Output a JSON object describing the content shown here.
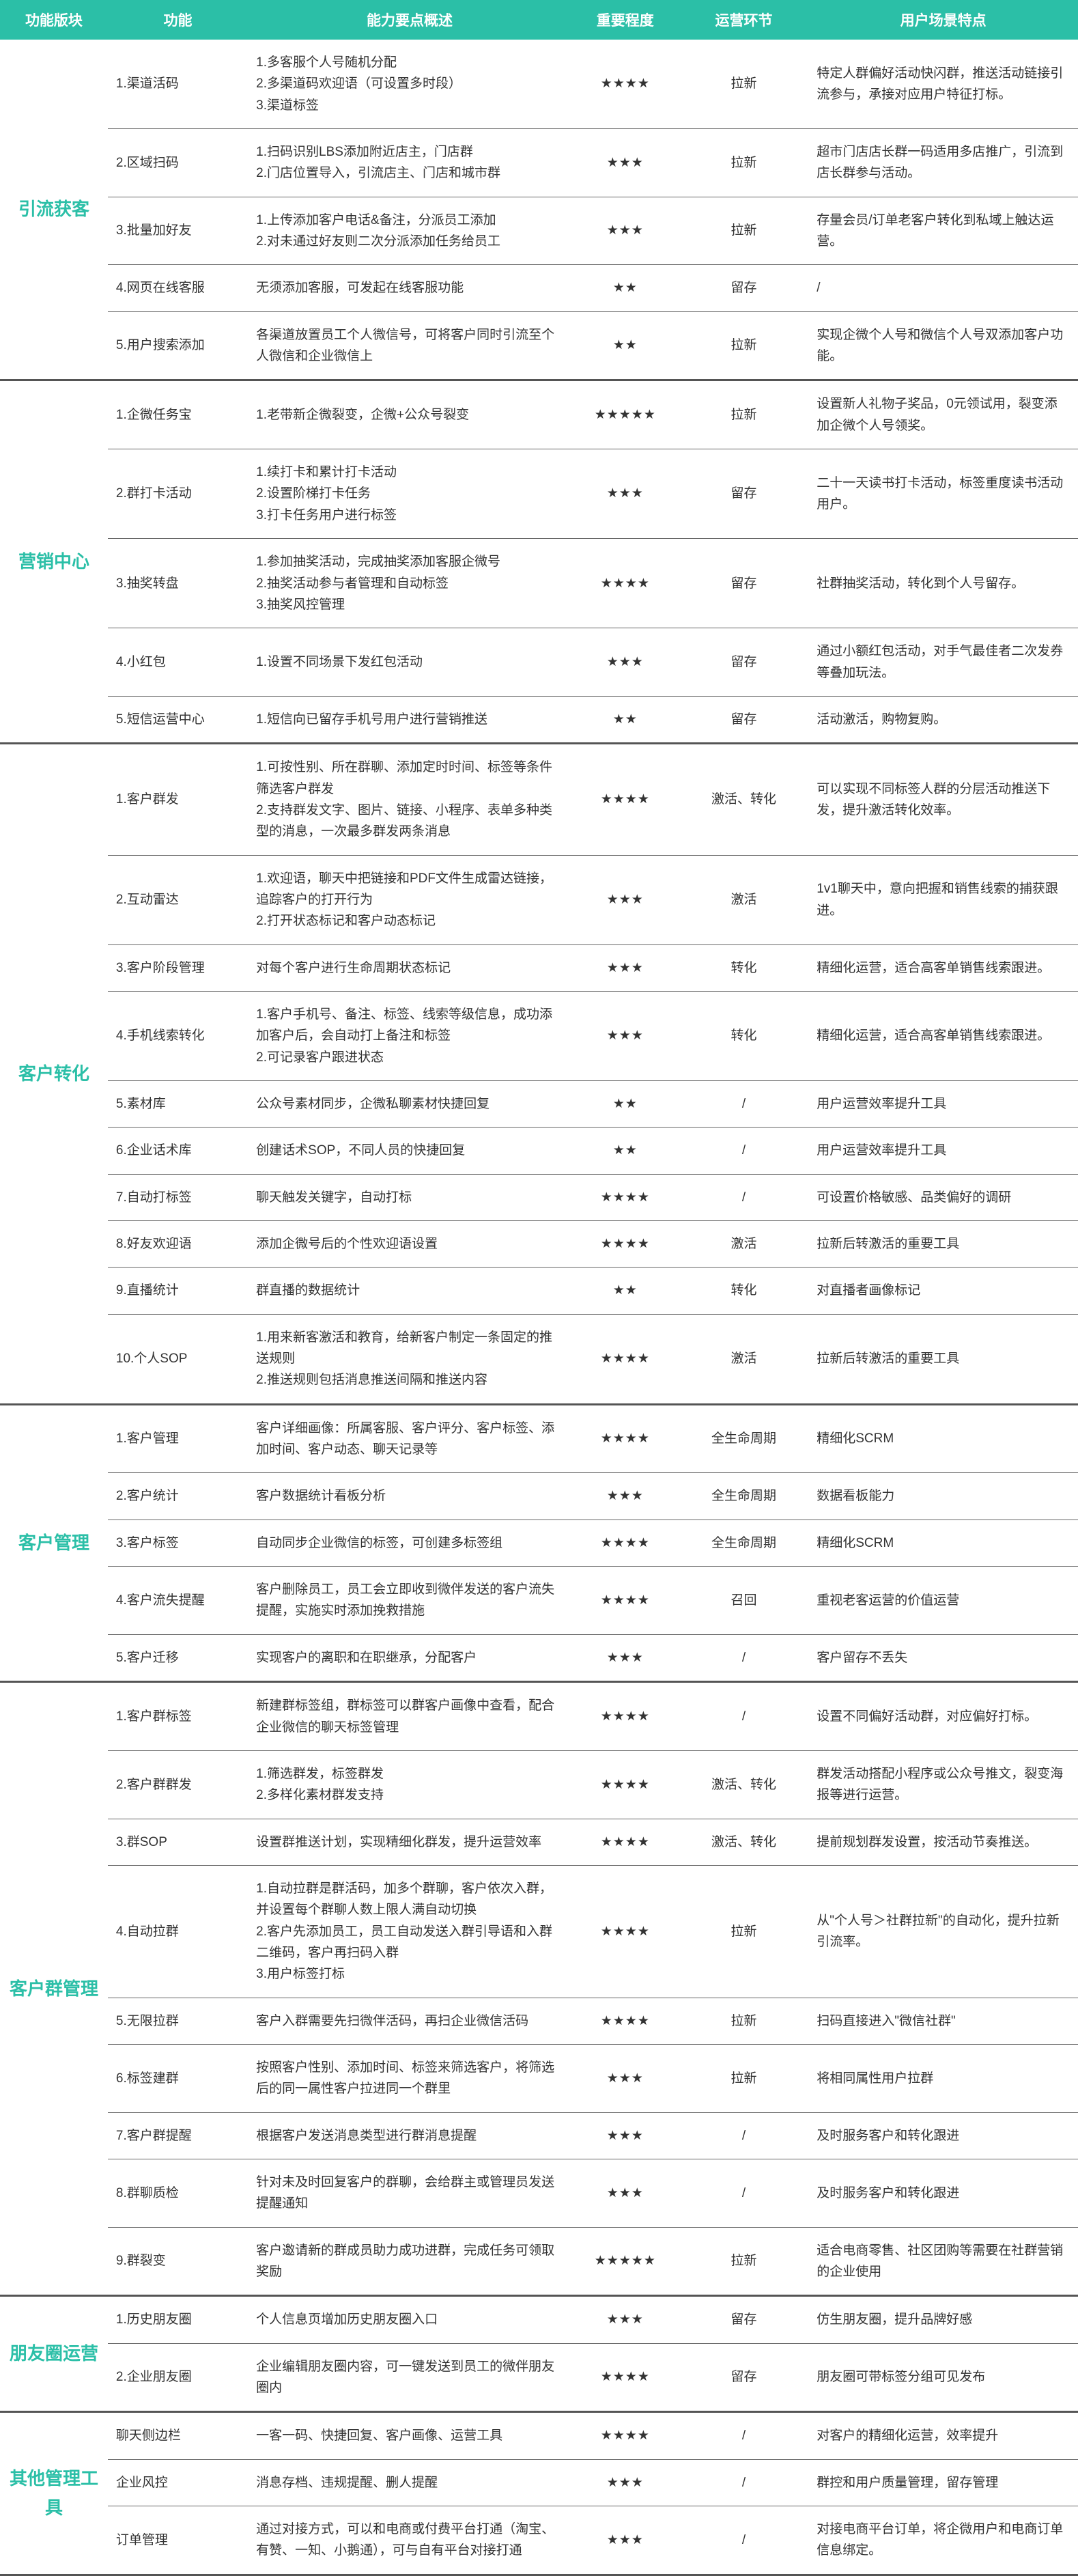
{
  "colors": {
    "header_bg": "#2bbfa7",
    "header_text": "#ffffff",
    "module_text": "#2bbfa7",
    "body_text": "#333333",
    "row_border": "#666666",
    "section_border": "#555555"
  },
  "column_widths_pct": [
    10,
    13,
    30,
    10,
    12,
    25
  ],
  "headers": [
    "功能版块",
    "功能",
    "能力要点概述",
    "重要程度",
    "运营环节",
    "用户场景特点"
  ],
  "modules": [
    {
      "name": "引流获客",
      "rows": [
        {
          "func": "1.渠道活码",
          "desc": "1.多客服个人号随机分配\n2.多渠道码欢迎语（可设置多时段）\n3.渠道标签",
          "stars": "★★★★",
          "phase": "拉新",
          "scene": "特定人群偏好活动快闪群，推送活动链接引流参与，承接对应用户特征打标。"
        },
        {
          "func": "2.区域扫码",
          "desc": "1.扫码识别LBS添加附近店主，门店群\n2.门店位置导入，引流店主、门店和城市群",
          "stars": "★★★",
          "phase": "拉新",
          "scene": "超市门店店长群一码适用多店推广，引流到店长群参与活动。"
        },
        {
          "func": "3.批量加好友",
          "desc": "1.上传添加客户电话&备注，分派员工添加\n2.对未通过好友则二次分派添加任务给员工",
          "stars": "★★★",
          "phase": "拉新",
          "scene": "存量会员/订单老客户转化到私域上触达运营。"
        },
        {
          "func": "4.网页在线客服",
          "desc": "无须添加客服，可发起在线客服功能",
          "stars": "★★",
          "phase": "留存",
          "scene": "/"
        },
        {
          "func": "5.用户搜索添加",
          "desc": "各渠道放置员工个人微信号，可将客户同时引流至个人微信和企业微信上",
          "stars": "★★",
          "phase": "拉新",
          "scene": "实现企微个人号和微信个人号双添加客户功能。"
        }
      ]
    },
    {
      "name": "营销中心",
      "rows": [
        {
          "func": "1.企微任务宝",
          "desc": "1.老带新企微裂变，企微+公众号裂变",
          "stars": "★★★★★",
          "phase": "拉新",
          "scene": "设置新人礼物子奖品，0元领试用，裂变添加企微个人号领奖。"
        },
        {
          "func": "2.群打卡活动",
          "desc": "1.续打卡和累计打卡活动\n2.设置阶梯打卡任务\n3.打卡任务用户进行标签",
          "stars": "★★★",
          "phase": "留存",
          "scene": "二十一天读书打卡活动，标签重度读书活动用户。"
        },
        {
          "func": "3.抽奖转盘",
          "desc": "1.参加抽奖活动，完成抽奖添加客服企微号\n2.抽奖活动参与者管理和自动标签\n3.抽奖风控管理",
          "stars": "★★★★",
          "phase": "留存",
          "scene": "社群抽奖活动，转化到个人号留存。"
        },
        {
          "func": "4.小红包",
          "desc": "1.设置不同场景下发红包活动",
          "stars": "★★★",
          "phase": "留存",
          "scene": "通过小额红包活动，对手气最佳者二次发券等叠加玩法。"
        },
        {
          "func": "5.短信运营中心",
          "desc": "1.短信向已留存手机号用户进行营销推送",
          "stars": "★★",
          "phase": "留存",
          "scene": "活动激活，购物复购。"
        }
      ]
    },
    {
      "name": "客户转化",
      "rows": [
        {
          "func": "1.客户群发",
          "desc": "1.可按性别、所在群聊、添加定时时间、标签等条件筛选客户群发\n2.支持群发文字、图片、链接、小程序、表单多种类型的消息，一次最多群发两条消息",
          "stars": "★★★★",
          "phase": "激活、转化",
          "scene": "可以实现不同标签人群的分层活动推送下发，提升激活转化效率。"
        },
        {
          "func": "2.互动雷达",
          "desc": "1.欢迎语，聊天中把链接和PDF文件生成雷达链接，追踪客户的打开行为\n2.打开状态标记和客户动态标记",
          "stars": "★★★",
          "phase": "激活",
          "scene": "1v1聊天中，意向把握和销售线索的捕获跟进。"
        },
        {
          "func": "3.客户阶段管理",
          "desc": "对每个客户进行生命周期状态标记",
          "stars": "★★★",
          "phase": "转化",
          "scene": "精细化运营，适合高客单销售线索跟进。"
        },
        {
          "func": "4.手机线索转化",
          "desc": "1.客户手机号、备注、标签、线索等级信息，成功添加客户后，会自动打上备注和标签\n2.可记录客户跟进状态",
          "stars": "★★★",
          "phase": "转化",
          "scene": "精细化运营，适合高客单销售线索跟进。"
        },
        {
          "func": "5.素材库",
          "desc": "公众号素材同步，企微私聊素材快捷回复",
          "stars": "★★",
          "phase": "/",
          "scene": "用户运营效率提升工具"
        },
        {
          "func": "6.企业话术库",
          "desc": "创建话术SOP，不同人员的快捷回复",
          "stars": "★★",
          "phase": "/",
          "scene": "用户运营效率提升工具"
        },
        {
          "func": "7.自动打标签",
          "desc": "聊天触发关键字，自动打标",
          "stars": "★★★★",
          "phase": "/",
          "scene": "可设置价格敏感、品类偏好的调研"
        },
        {
          "func": "8.好友欢迎语",
          "desc": "添加企微号后的个性欢迎语设置",
          "stars": "★★★★",
          "phase": "激活",
          "scene": "拉新后转激活的重要工具"
        },
        {
          "func": "9.直播统计",
          "desc": "群直播的数据统计",
          "stars": "★★",
          "phase": "转化",
          "scene": "对直播者画像标记"
        },
        {
          "func": "10.个人SOP",
          "desc": "1.用来新客激活和教育，给新客户制定一条固定的推送规则\n2.推送规则包括消息推送间隔和推送内容",
          "stars": "★★★★",
          "phase": "激活",
          "scene": "拉新后转激活的重要工具"
        }
      ]
    },
    {
      "name": "客户管理",
      "rows": [
        {
          "func": "1.客户管理",
          "desc": "客户详细画像：所属客服、客户评分、客户标签、添加时间、客户动态、聊天记录等",
          "stars": "★★★★",
          "phase": "全生命周期",
          "scene": "精细化SCRM"
        },
        {
          "func": "2.客户统计",
          "desc": "客户数据统计看板分析",
          "stars": "★★★",
          "phase": "全生命周期",
          "scene": "数据看板能力"
        },
        {
          "func": "3.客户标签",
          "desc": "自动同步企业微信的标签，可创建多标签组",
          "stars": "★★★★",
          "phase": "全生命周期",
          "scene": "精细化SCRM"
        },
        {
          "func": "4.客户流失提醒",
          "desc": "客户删除员工，员工会立即收到微伴发送的客户流失提醒，实施实时添加挽救措施",
          "stars": "★★★★",
          "phase": "召回",
          "scene": "重视老客运营的价值运营"
        },
        {
          "func": "5.客户迁移",
          "desc": "实现客户的离职和在职继承，分配客户",
          "stars": "★★★",
          "phase": "/",
          "scene": "客户留存不丢失"
        }
      ]
    },
    {
      "name": "客户群管理",
      "rows": [
        {
          "func": "1.客户群标签",
          "desc": "新建群标签组，群标签可以群客户画像中查看，配合企业微信的聊天标签管理",
          "stars": "★★★★",
          "phase": "/",
          "scene": "设置不同偏好活动群，对应偏好打标。"
        },
        {
          "func": "2.客户群群发",
          "desc": "1.筛选群发，标签群发\n2.多样化素材群发支持",
          "stars": "★★★★",
          "phase": "激活、转化",
          "scene": "群发活动搭配小程序或公众号推文，裂变海报等进行运营。"
        },
        {
          "func": "3.群SOP",
          "desc": "设置群推送计划，实现精细化群发，提升运营效率",
          "stars": "★★★★",
          "phase": "激活、转化",
          "scene": "提前规划群发设置，按活动节奏推送。"
        },
        {
          "func": "4.自动拉群",
          "desc": "1.自动拉群是群活码，加多个群聊，客户依次入群，并设置每个群聊人数上限人满自动切换\n2.客户先添加员工，员工自动发送入群引导语和入群二维码，客户再扫码入群\n3.用户标签打标",
          "stars": "★★★★",
          "phase": "拉新",
          "scene": "从\"个人号＞社群拉新\"的自动化，提升拉新引流率。"
        },
        {
          "func": "5.无限拉群",
          "desc": "客户入群需要先扫微伴活码，再扫企业微信活码",
          "stars": "★★★★",
          "phase": "拉新",
          "scene": "扫码直接进入\"微信社群\""
        },
        {
          "func": "6.标签建群",
          "desc": "按照客户性别、添加时间、标签来筛选客户，将筛选后的同一属性客户拉进同一个群里",
          "stars": "★★★",
          "phase": "拉新",
          "scene": "将相同属性用户拉群"
        },
        {
          "func": "7.客户群提醒",
          "desc": "根据客户发送消息类型进行群消息提醒",
          "stars": "★★★",
          "phase": "/",
          "scene": "及时服务客户和转化跟进"
        },
        {
          "func": "8.群聊质检",
          "desc": "针对未及时回复客户的群聊，会给群主或管理员发送提醒通知",
          "stars": "★★★",
          "phase": "/",
          "scene": "及时服务客户和转化跟进"
        },
        {
          "func": "9.群裂变",
          "desc": "客户邀请新的群成员助力成功进群，完成任务可领取奖励",
          "stars": "★★★★★",
          "phase": "拉新",
          "scene": "适合电商零售、社区团购等需要在社群营销的企业使用"
        }
      ]
    },
    {
      "name": "朋友圈运营",
      "rows": [
        {
          "func": "1.历史朋友圈",
          "desc": "个人信息页增加历史朋友圈入口",
          "stars": "★★★",
          "phase": "留存",
          "scene": "仿生朋友圈，提升品牌好感"
        },
        {
          "func": "2.企业朋友圈",
          "desc": "企业编辑朋友圈内容，可一键发送到员工的微伴朋友圈内",
          "stars": "★★★★",
          "phase": "留存",
          "scene": "朋友圈可带标签分组可见发布"
        }
      ]
    },
    {
      "name": "其他管理工具",
      "rows": [
        {
          "func": "聊天侧边栏",
          "desc": "一客一码、快捷回复、客户画像、运营工具",
          "stars": "★★★★",
          "phase": "/",
          "scene": "对客户的精细化运营，效率提升"
        },
        {
          "func": "企业风控",
          "desc": "消息存档、违规提醒、删人提醒",
          "stars": "★★★",
          "phase": "/",
          "scene": "群控和用户质量管理，留存管理"
        },
        {
          "func": "订单管理",
          "desc": "通过对接方式，可以和电商或付费平台打通（淘宝、有赞、一知、小鹅通），可与自有平台对接打通",
          "stars": "★★★",
          "phase": "/",
          "scene": "对接电商平台订单，将企微用户和电商订单信息绑定。"
        }
      ]
    }
  ]
}
